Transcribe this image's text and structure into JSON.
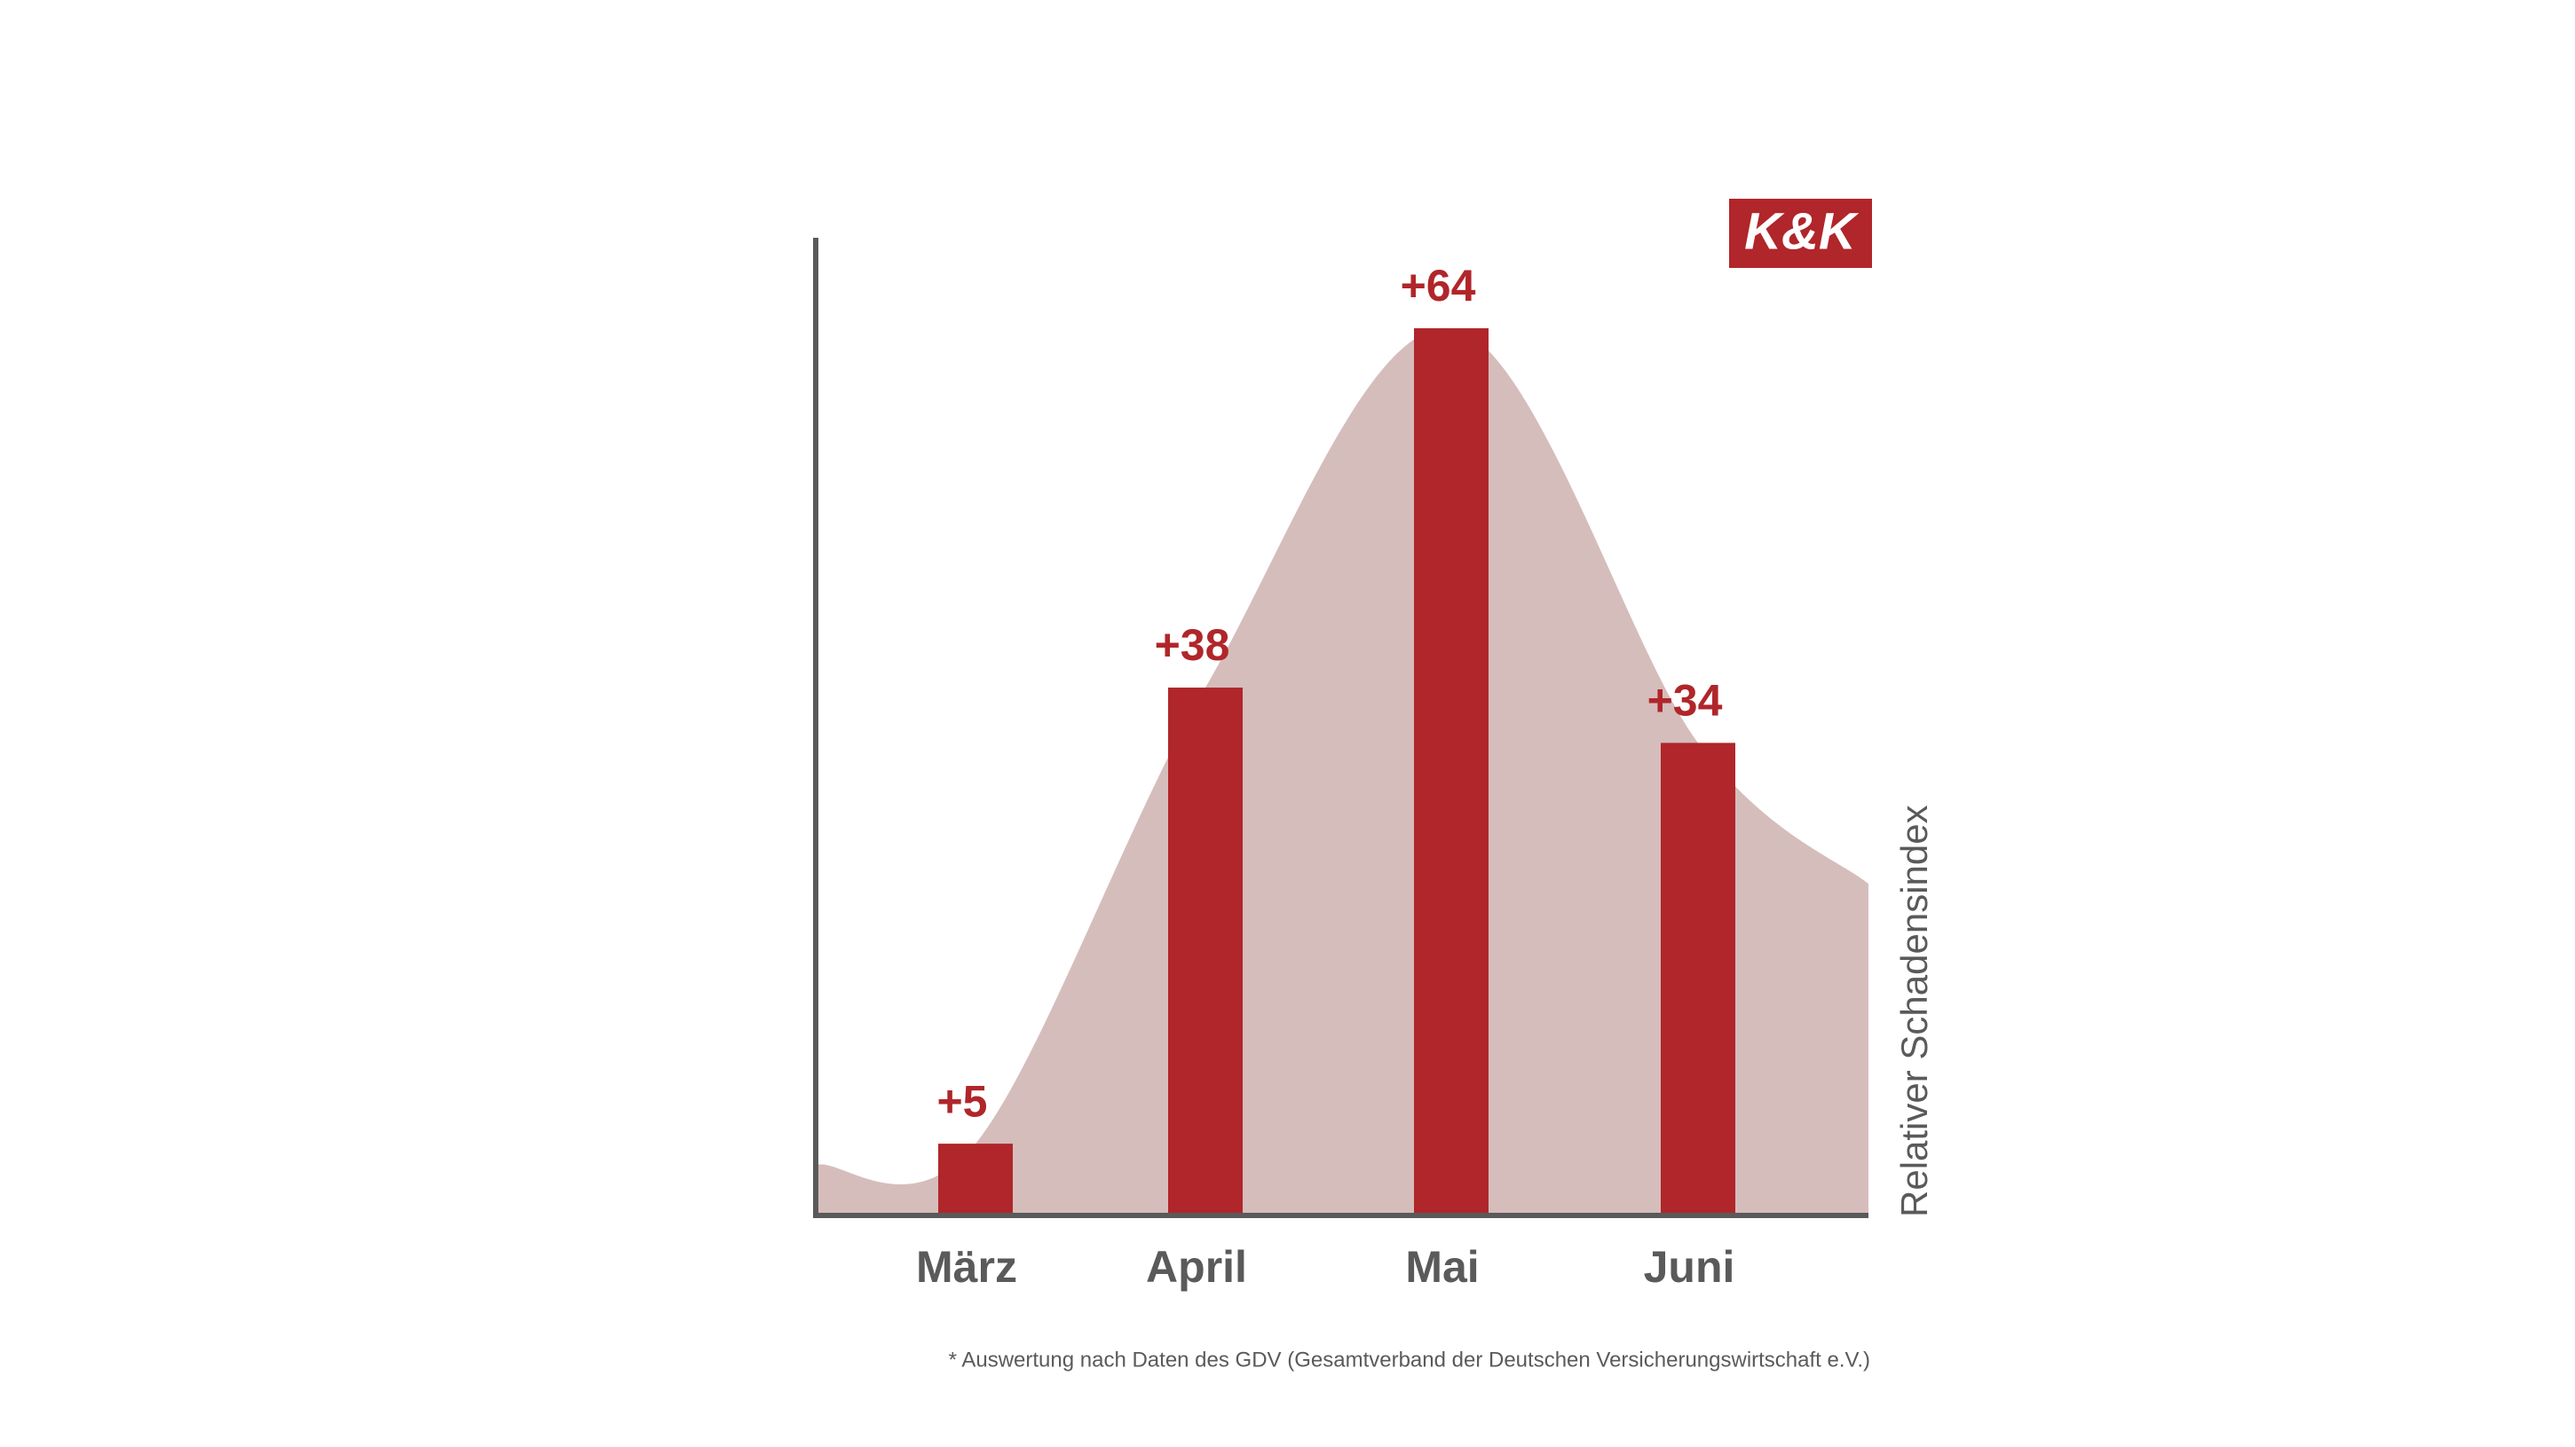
{
  "chart_data": {
    "type": "bar",
    "categories": [
      "März",
      "April",
      "Mai",
      "Juni"
    ],
    "values": [
      5,
      38,
      64,
      34
    ],
    "value_labels": [
      "+5",
      "+38",
      "+64",
      "+34"
    ],
    "color": "#b0262a",
    "area_color": "#d5bdbc",
    "ylabel": "Relativer Schadensindex",
    "logo": "K&K",
    "note": "* Auswertung nach Daten des GDV (Gesamtverband der Deutschen Versicherungswirtschaft e.V.)"
  }
}
